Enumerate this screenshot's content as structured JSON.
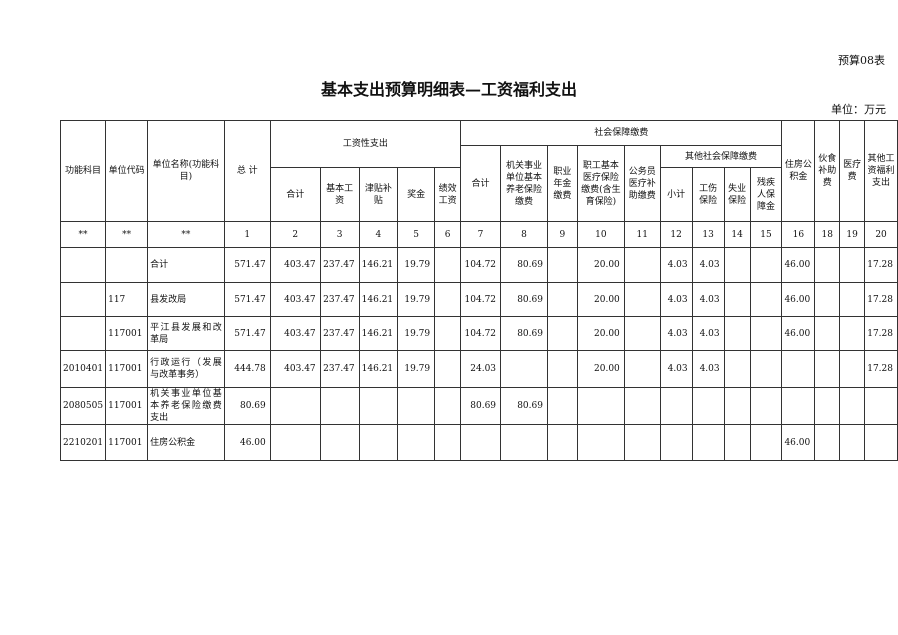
{
  "form_no": "预算08表",
  "title": "基本支出预算明细表—工资福利支出",
  "unit": "单位：万元",
  "headers": {
    "func": "功能科目",
    "code": "单位代码",
    "name": "单位名称(功能科目)",
    "total": "总 计",
    "wage": "工资性支出",
    "social": "社会保障缴费",
    "wage_cols": [
      "合计",
      "基本工资",
      "津贴补贴",
      "奖金",
      "绩效工资"
    ],
    "soc_total": "合计",
    "soc_pension": "机关事业单位基本养老保险缴费",
    "soc_annuity": "职业年金缴费",
    "soc_medical": "职工基本医疗保险缴费(含生育保险)",
    "soc_civil": "公务员医疗补助缴费",
    "other_soc": "其他社会保障缴费",
    "other_cols": [
      "小计",
      "工伤保险",
      "失业保险",
      "残疾人保障金"
    ],
    "housing": "住房公积金",
    "meal": "伙食补助费",
    "medical": "医疗费",
    "other_welfare": "其他工资福利支出"
  },
  "col_numbers": [
    "**",
    "**",
    "**",
    "1",
    "2",
    "3",
    "4",
    "5",
    "6",
    "7",
    "8",
    "9",
    "10",
    "11",
    "12",
    "13",
    "14",
    "15",
    "16",
    "18",
    "19",
    "20"
  ],
  "rows": [
    [
      "",
      "",
      "合计",
      "571.47",
      "403.47",
      "237.47",
      "146.21",
      "19.79",
      "",
      "104.72",
      "80.69",
      "",
      "20.00",
      "",
      "4.03",
      "4.03",
      "",
      "",
      "46.00",
      "",
      "",
      "17.28"
    ],
    [
      "",
      "117",
      "县发改局",
      "571.47",
      "403.47",
      "237.47",
      "146.21",
      "19.79",
      "",
      "104.72",
      "80.69",
      "",
      "20.00",
      "",
      "4.03",
      "4.03",
      "",
      "",
      "46.00",
      "",
      "",
      "17.28"
    ],
    [
      "",
      "117001",
      "平江县发展和改革局",
      "571.47",
      "403.47",
      "237.47",
      "146.21",
      "19.79",
      "",
      "104.72",
      "80.69",
      "",
      "20.00",
      "",
      "4.03",
      "4.03",
      "",
      "",
      "46.00",
      "",
      "",
      "17.28"
    ],
    [
      "2010401",
      "117001",
      "行政运行（发展与改革事务）",
      "444.78",
      "403.47",
      "237.47",
      "146.21",
      "19.79",
      "",
      "24.03",
      "",
      "",
      "20.00",
      "",
      "4.03",
      "4.03",
      "",
      "",
      "",
      "",
      "",
      "17.28"
    ],
    [
      "2080505",
      "117001",
      "机关事业单位基本养老保险缴费支出",
      "80.69",
      "",
      "",
      "",
      "",
      "",
      "80.69",
      "80.69",
      "",
      "",
      "",
      "",
      "",
      "",
      "",
      "",
      "",
      "",
      ""
    ],
    [
      "2210201",
      "117001",
      "住房公积金",
      "46.00",
      "",
      "",
      "",
      "",
      "",
      "",
      "",
      "",
      "",
      "",
      "",
      "",
      "",
      "",
      "46.00",
      "",
      "",
      ""
    ]
  ]
}
